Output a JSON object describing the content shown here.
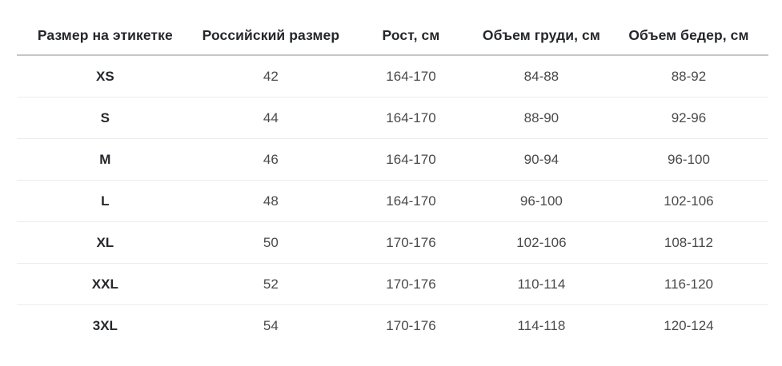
{
  "table": {
    "columns": [
      "Размер на этикетке",
      "Российский размер",
      "Рост, см",
      "Объем груди, см",
      "Объем бедер, см"
    ],
    "rows": [
      [
        "XS",
        "42",
        "164-170",
        "84-88",
        "88-92"
      ],
      [
        "S",
        "44",
        "164-170",
        "88-90",
        "92-96"
      ],
      [
        "M",
        "46",
        "164-170",
        "90-94",
        "96-100"
      ],
      [
        "L",
        "48",
        "164-170",
        "96-100",
        "102-106"
      ],
      [
        "XL",
        "50",
        "170-176",
        "102-106",
        "108-112"
      ],
      [
        "XXL",
        "52",
        "170-176",
        "110-114",
        "116-120"
      ],
      [
        "3XL",
        "54",
        "170-176",
        "114-118",
        "120-124"
      ]
    ]
  },
  "colors": {
    "background": "#ffffff",
    "header_text": "#25272b",
    "size_label_text": "#25272b",
    "body_text": "#4a4a4a",
    "header_border": "#c6c6c6",
    "row_border": "#ececec"
  },
  "chart_data": {
    "type": "table",
    "title": "",
    "columns": [
      "Размер на этикетке",
      "Российский размер",
      "Рост, см",
      "Объем груди, см",
      "Объем бедер, см"
    ],
    "rows": [
      [
        "XS",
        "42",
        "164-170",
        "84-88",
        "88-92"
      ],
      [
        "S",
        "44",
        "164-170",
        "88-90",
        "92-96"
      ],
      [
        "M",
        "46",
        "164-170",
        "90-94",
        "96-100"
      ],
      [
        "L",
        "48",
        "164-170",
        "96-100",
        "102-106"
      ],
      [
        "XL",
        "50",
        "170-176",
        "102-106",
        "108-112"
      ],
      [
        "XXL",
        "52",
        "170-176",
        "110-114",
        "116-120"
      ],
      [
        "3XL",
        "54",
        "170-176",
        "114-118",
        "120-124"
      ]
    ]
  }
}
